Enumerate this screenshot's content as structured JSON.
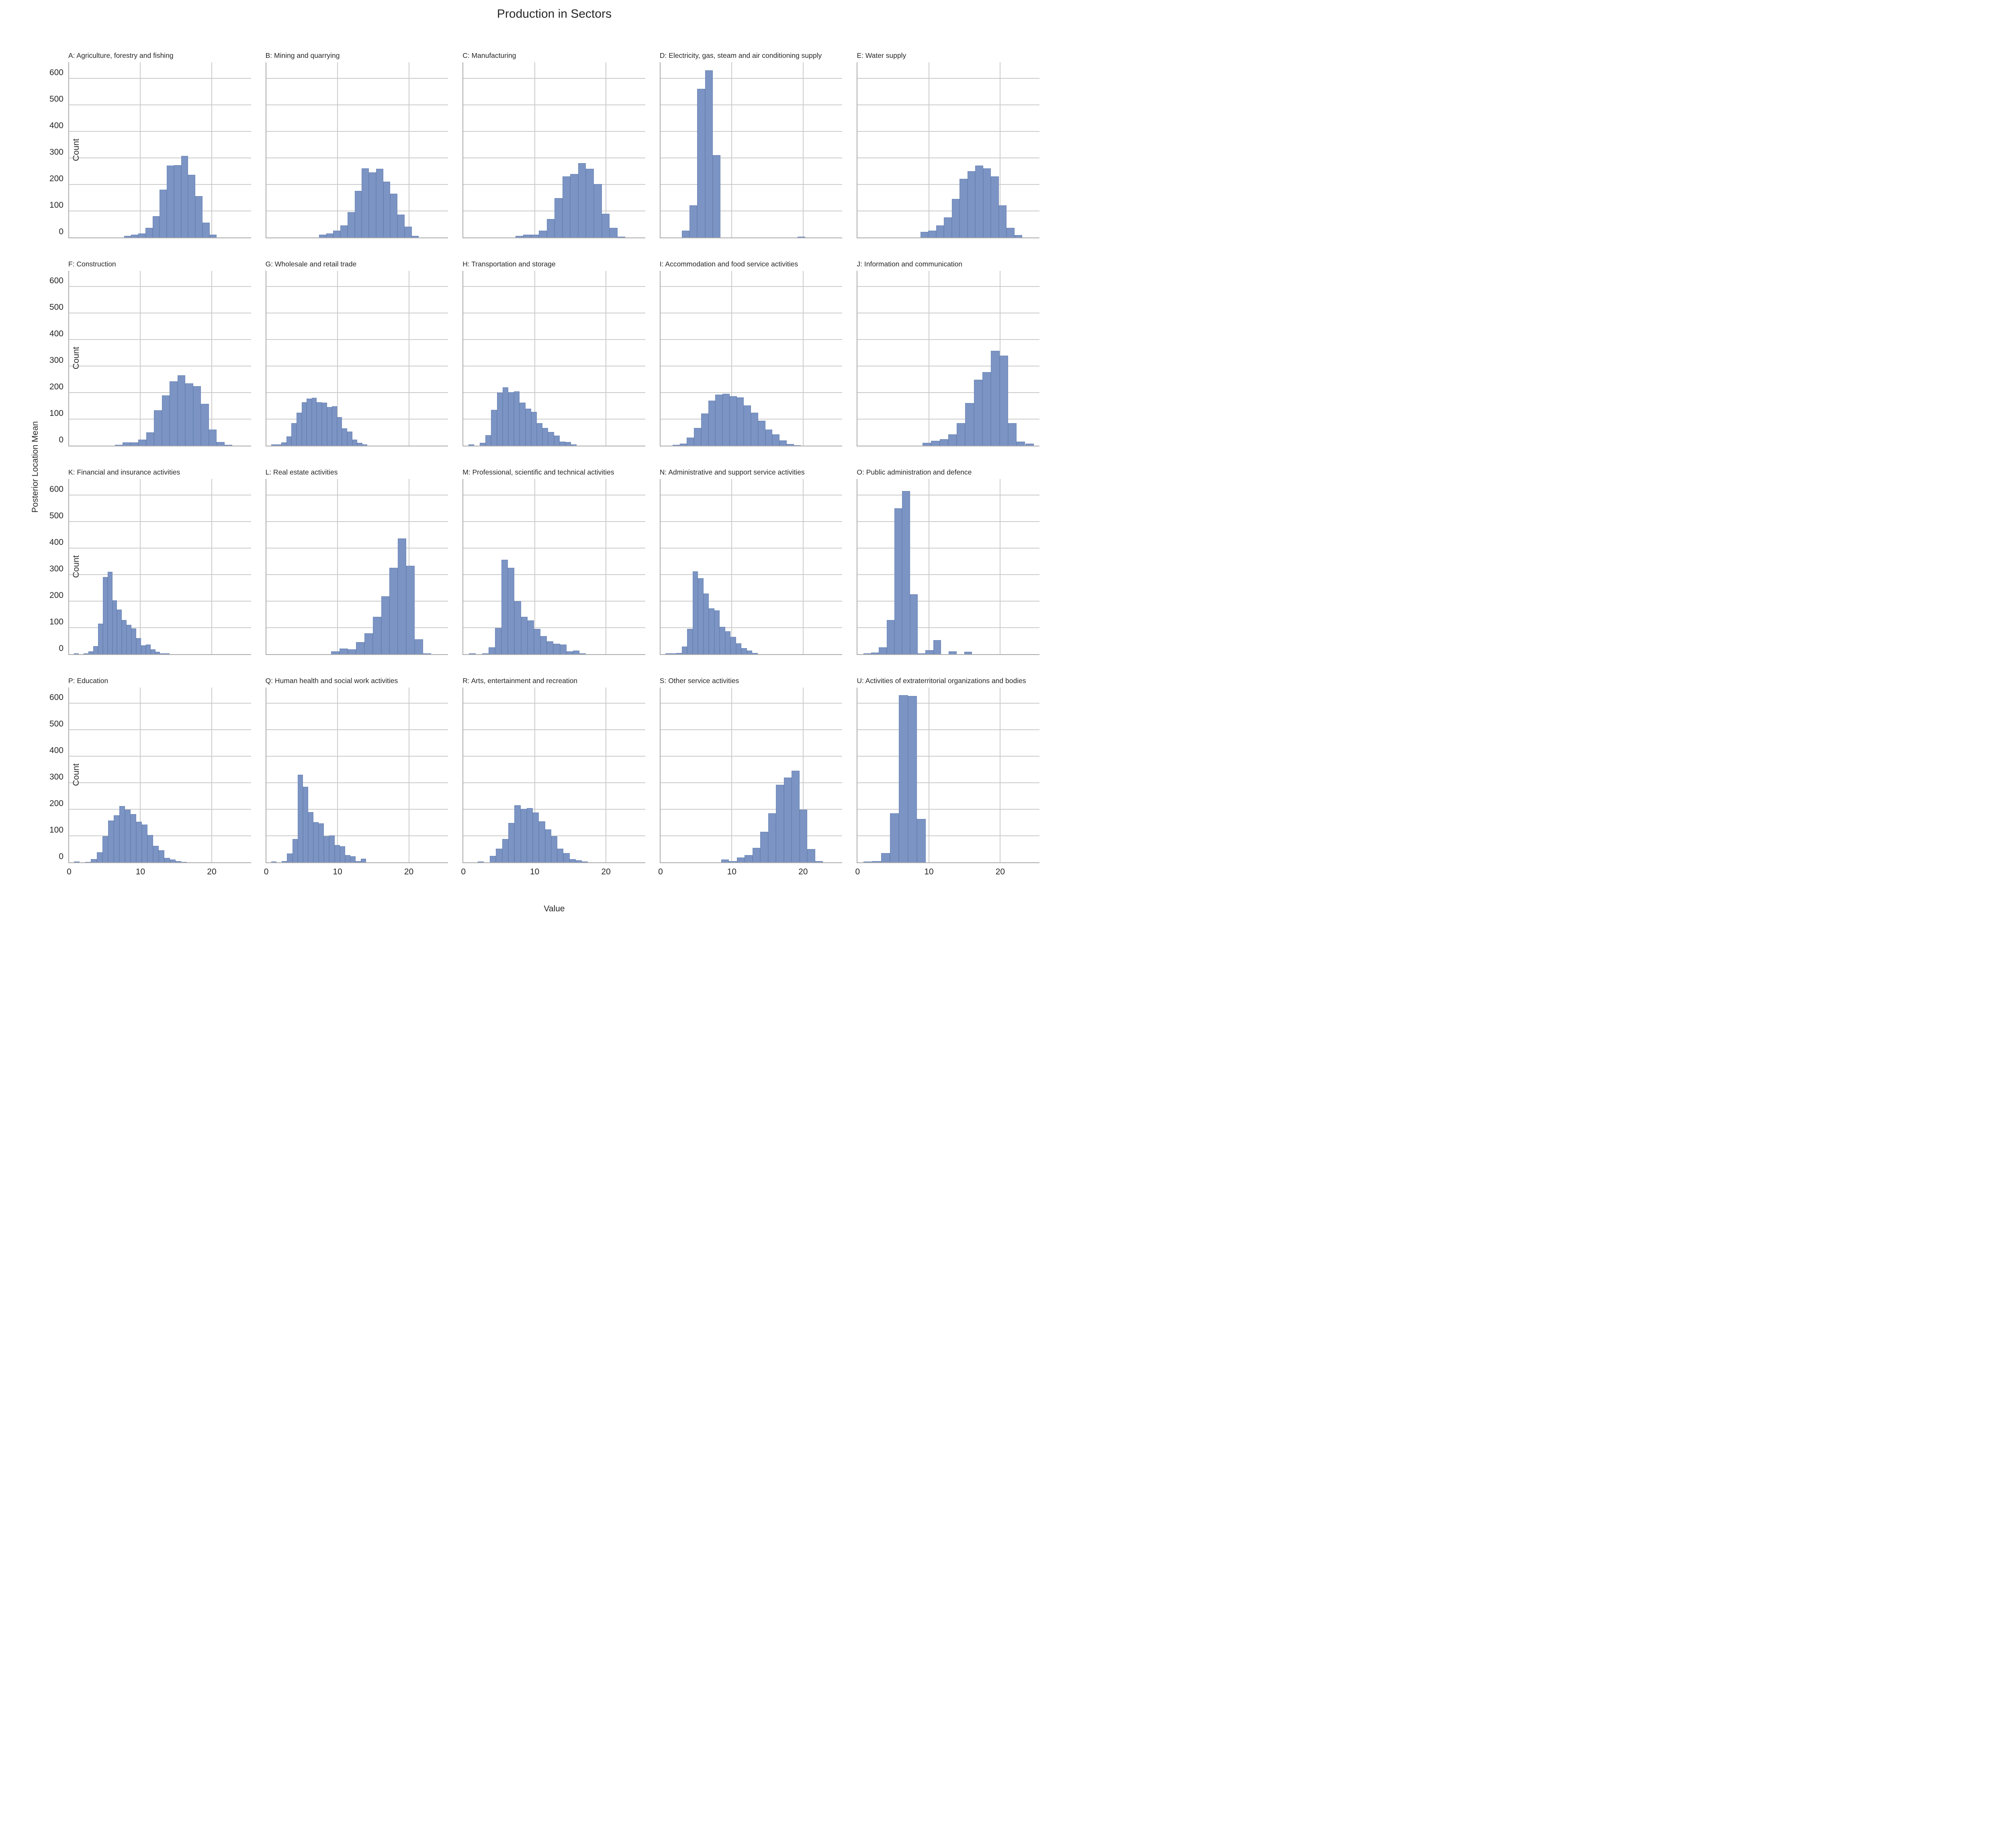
{
  "title": "Production in Sectors",
  "axis": {
    "xlabel": "Value",
    "figure_ylabel": "Posterior Location Mean",
    "row_ylabel": "Count"
  },
  "chart_data": {
    "type": "bar",
    "title": "Production in Sectors",
    "xlabel": "Value",
    "ylabel": "Count",
    "figure_ylabel": "Posterior Location Mean",
    "xlim": [
      0,
      25.5
    ],
    "ylim": [
      0,
      660
    ],
    "xticks": [
      0,
      10,
      20
    ],
    "yticks": [
      0,
      100,
      200,
      300,
      400,
      500,
      600
    ],
    "grid": true,
    "legend": false,
    "bar_color": "#7b94c4",
    "gridline_color": "#cbcbcb",
    "spine_color": "#ababab",
    "subplots": [
      {
        "title": "A: Agriculture, forestry and fishing",
        "bin_start": 7.7,
        "bin_width": 1.0,
        "counts": [
          5,
          10,
          15,
          35,
          80,
          180,
          270,
          272,
          307,
          235,
          155,
          55,
          10
        ]
      },
      {
        "title": "B: Mining and quarrying",
        "bin_start": 7.4,
        "bin_width": 1.0,
        "counts": [
          10,
          15,
          25,
          45,
          95,
          175,
          260,
          245,
          258,
          210,
          165,
          85,
          40,
          5
        ]
      },
      {
        "title": "C: Manufacturing",
        "bin_start": 7.3,
        "bin_width": 1.1,
        "counts": [
          6,
          10,
          10,
          25,
          69,
          148,
          229,
          239,
          279,
          259,
          201,
          88,
          35,
          3
        ]
      },
      {
        "title": "D: Electricity, gas, steam and air conditioning supply",
        "bin_start": 3.0,
        "bin_width": 1.08,
        "counts": [
          25,
          120,
          560,
          630,
          310,
          0,
          0,
          0,
          0,
          0,
          0,
          0,
          0,
          0,
          0,
          3
        ]
      },
      {
        "title": "E: Water supply",
        "bin_start": 8.8,
        "bin_width": 1.1,
        "counts": [
          20,
          25,
          45,
          75,
          145,
          220,
          250,
          270,
          260,
          230,
          120,
          35,
          8
        ]
      },
      {
        "title": "F: Construction",
        "bin_start": 6.4,
        "bin_width": 1.1,
        "counts": [
          3,
          12,
          12,
          22,
          50,
          133,
          190,
          243,
          265,
          235,
          225,
          157,
          60,
          14,
          3
        ]
      },
      {
        "title": "G: Wholesale and retail trade",
        "bin_start": 0.7,
        "bin_width": 0.71,
        "counts": [
          4,
          5,
          12,
          35,
          85,
          125,
          163,
          177,
          181,
          163,
          162,
          145,
          148,
          108,
          65,
          53,
          23,
          10,
          4
        ]
      },
      {
        "title": "H: Transportation and storage",
        "bin_start": 0.7,
        "bin_width": 0.8,
        "counts": [
          4,
          0,
          10,
          40,
          135,
          200,
          220,
          202,
          205,
          162,
          140,
          128,
          85,
          66,
          52,
          38,
          15,
          13,
          4
        ]
      },
      {
        "title": "I: Accommodation and food service activities",
        "bin_start": 1.7,
        "bin_width": 1.0,
        "counts": [
          3,
          8,
          30,
          67,
          121,
          170,
          192,
          195,
          186,
          182,
          152,
          124,
          94,
          61,
          42,
          19,
          6,
          2
        ]
      },
      {
        "title": "J: Information and communication",
        "bin_start": 9.1,
        "bin_width": 1.2,
        "counts": [
          10,
          18,
          25,
          42,
          85,
          160,
          248,
          278,
          358,
          340,
          85,
          15,
          8
        ]
      },
      {
        "title": "K: Financial and insurance activities",
        "bin_start": 0.7,
        "bin_width": 0.67,
        "counts": [
          3,
          0,
          2,
          10,
          30,
          115,
          290,
          310,
          203,
          168,
          128,
          110,
          97,
          60,
          32,
          35,
          18,
          8,
          2,
          2
        ]
      },
      {
        "title": "L: Real estate activities",
        "bin_start": 9.1,
        "bin_width": 1.17,
        "counts": [
          10,
          20,
          18,
          45,
          78,
          140,
          218,
          325,
          435,
          333,
          55,
          3
        ]
      },
      {
        "title": "M: Professional, scientific and technical activities",
        "bin_start": 0.8,
        "bin_width": 0.91,
        "counts": [
          3,
          0,
          3,
          25,
          98,
          355,
          325,
          200,
          140,
          127,
          95,
          68,
          48,
          38,
          35,
          10,
          13,
          2
        ]
      },
      {
        "title": "N: Administrative and support service activities",
        "bin_start": 0.7,
        "bin_width": 0.76,
        "counts": [
          3,
          2,
          4,
          28,
          95,
          312,
          285,
          228,
          172,
          165,
          103,
          85,
          65,
          40,
          22,
          13,
          4
        ]
      },
      {
        "title": "O: Public administration and defence",
        "bin_start": 0.8,
        "bin_width": 1.09,
        "counts": [
          3,
          5,
          25,
          128,
          550,
          615,
          225,
          3,
          15,
          52,
          0,
          10,
          0,
          8
        ]
      },
      {
        "title": "P: Education",
        "bin_start": 0.7,
        "bin_width": 0.79,
        "counts": [
          3,
          0,
          2,
          12,
          38,
          98,
          158,
          178,
          212,
          198,
          182,
          153,
          142,
          103,
          62,
          46,
          17,
          11,
          4,
          2
        ]
      },
      {
        "title": "Q: Human health and social work activities",
        "bin_start": 0.7,
        "bin_width": 0.74,
        "counts": [
          3,
          0,
          5,
          33,
          88,
          330,
          285,
          190,
          152,
          147,
          98,
          102,
          65,
          60,
          28,
          22,
          5,
          13
        ]
      },
      {
        "title": "R: Arts, entertainment and recreation",
        "bin_start": 2.0,
        "bin_width": 0.86,
        "counts": [
          3,
          0,
          25,
          52,
          88,
          148,
          215,
          202,
          204,
          188,
          155,
          125,
          98,
          52,
          35,
          12,
          8,
          3
        ]
      },
      {
        "title": "S: Other service activities",
        "bin_start": 8.5,
        "bin_width": 1.1,
        "counts": [
          10,
          5,
          18,
          28,
          55,
          115,
          185,
          293,
          320,
          345,
          198,
          50,
          5
        ]
      },
      {
        "title": "U: Activities of extraterritorial organizations and bodies",
        "bin_start": 0.8,
        "bin_width": 1.25,
        "counts": [
          3,
          4,
          35,
          185,
          630,
          628,
          163
        ]
      }
    ]
  }
}
